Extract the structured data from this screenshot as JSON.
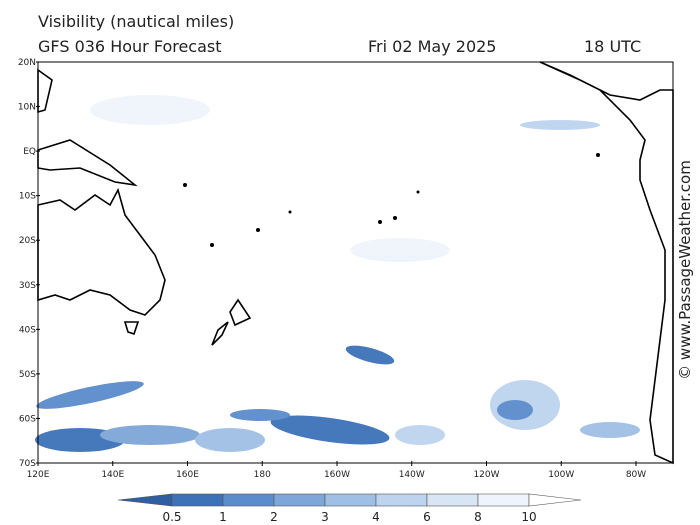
{
  "header": {
    "title": "Visibility (nautical miles)",
    "subtitle": "GFS 036 Hour Forecast",
    "date": "Fri 02 May 2025",
    "time": "18 UTC"
  },
  "map": {
    "lat_labels": [
      "20N",
      "10N",
      "EQ",
      "10S",
      "20S",
      "30S",
      "40S",
      "50S",
      "60S",
      "70S"
    ],
    "lon_labels": [
      "120E",
      "140E",
      "160E",
      "180",
      "160W",
      "140W",
      "120W",
      "100W",
      "80W"
    ]
  },
  "colorbar": {
    "labels": [
      "0.5",
      "1",
      "2",
      "3",
      "4",
      "6",
      "8",
      "10"
    ],
    "colors": [
      "#2f5fa0",
      "#3d72b8",
      "#5b8ccb",
      "#7ea6d8",
      "#9fbfe4",
      "#bdd3ee",
      "#d8e5f5",
      "#eef4fb",
      "#ffffff"
    ]
  },
  "watermark": "© www.PassageWeather.com"
}
